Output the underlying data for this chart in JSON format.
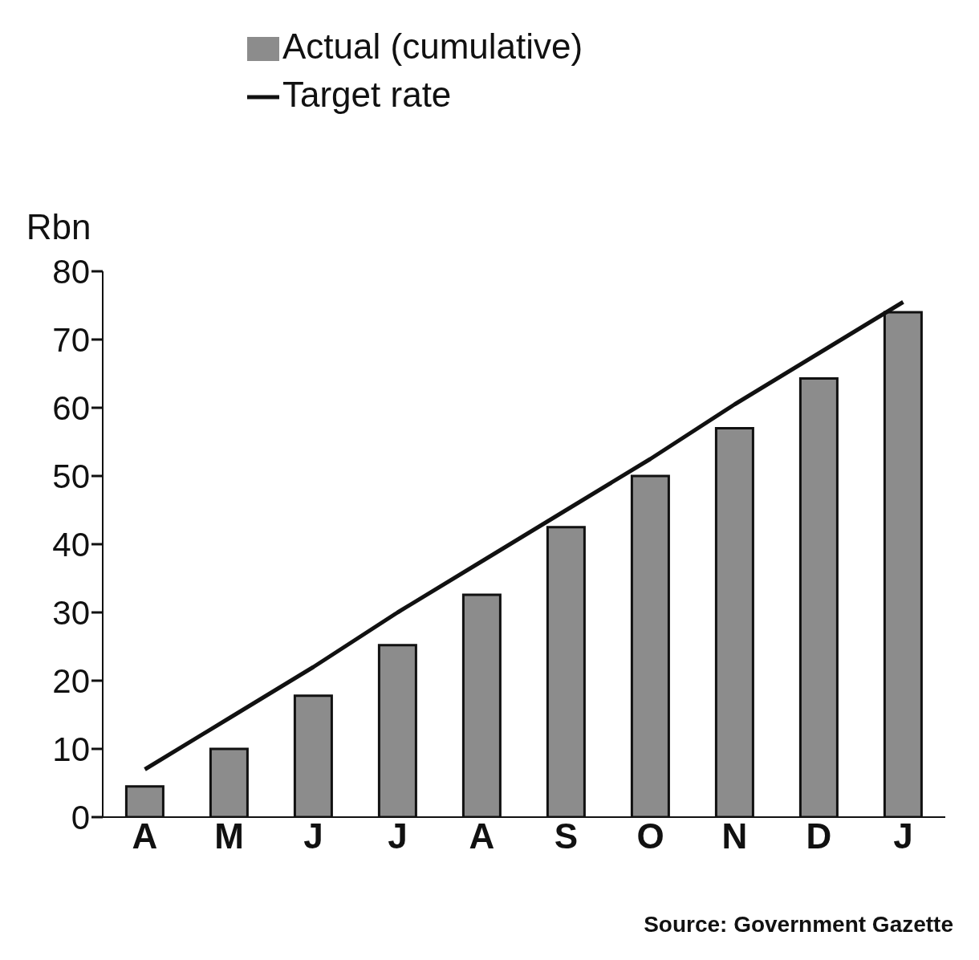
{
  "chart_data": {
    "type": "bar",
    "ylabel": "Rbn",
    "categories": [
      "A",
      "M",
      "J",
      "J",
      "A",
      "S",
      "O",
      "N",
      "D",
      "J"
    ],
    "series": [
      {
        "name": "Actual (cumulative)",
        "color": "#8c8c8c",
        "values": [
          4.5,
          10,
          17.8,
          25.2,
          32.6,
          42.5,
          50,
          57,
          64.3,
          74
        ]
      },
      {
        "name": "Target rate",
        "type": "line",
        "color": "#111111",
        "values": [
          7,
          14.5,
          22,
          30,
          37.5,
          45,
          52.5,
          60.5,
          68,
          75.5
        ]
      }
    ],
    "ylim": [
      0,
      80
    ],
    "yticks": [
      0,
      10,
      20,
      30,
      40,
      50,
      60,
      70,
      80
    ],
    "legend": "top left",
    "marker": "none",
    "line_style": "solid",
    "annotations": [
      "Source: Government Gazette"
    ]
  }
}
